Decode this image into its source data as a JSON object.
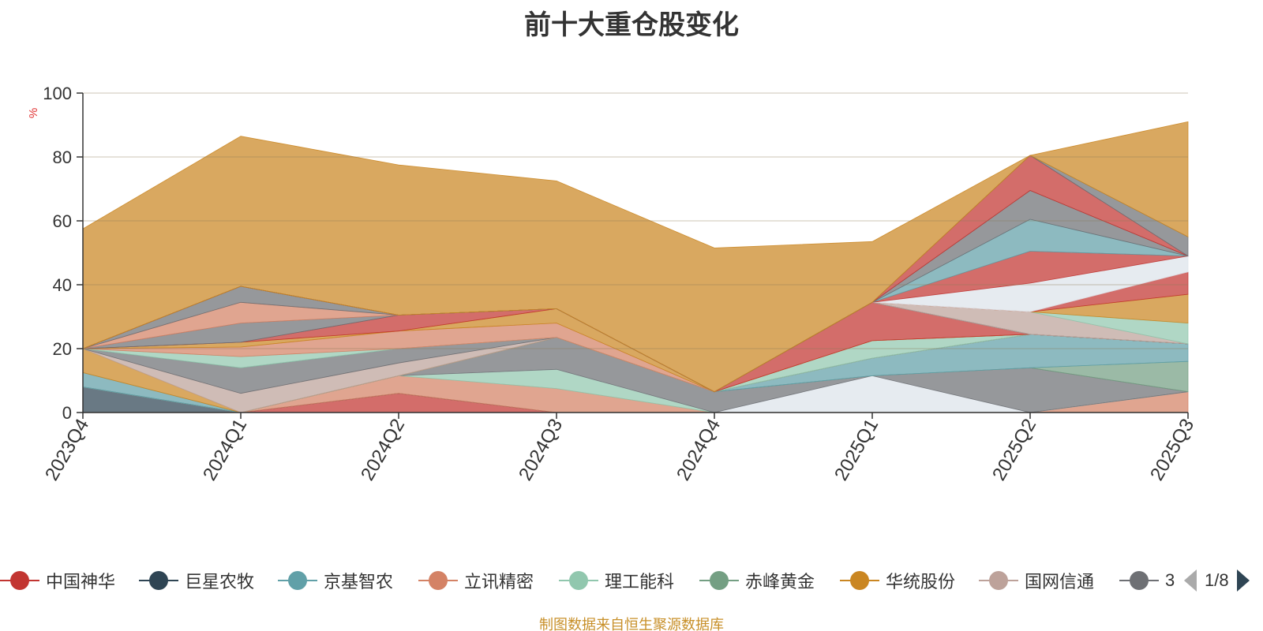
{
  "title": "前十大重仓股变化",
  "source_note": "制图数据来自恒生聚源数据库",
  "legend_pager": {
    "text": "1/8"
  },
  "legend_items": [
    {
      "name": "中国神华",
      "color": "#c23531"
    },
    {
      "name": "巨星农牧",
      "color": "#2f4554"
    },
    {
      "name": "京基智农",
      "color": "#61a0a8"
    },
    {
      "name": "立讯精密",
      "color": "#d48265"
    },
    {
      "name": "理工能科",
      "color": "#91c7ae"
    },
    {
      "name": "赤峰黄金",
      "color": "#749f83"
    },
    {
      "name": "华统股份",
      "color": "#ca8622"
    },
    {
      "name": "国网信通",
      "color": "#bda29a"
    },
    {
      "name": "3",
      "color": "#6e7074"
    }
  ],
  "chart_data": {
    "type": "area",
    "stacked": true,
    "ylabel": "%",
    "ylim": [
      0,
      100
    ],
    "yticks": [
      0,
      20,
      40,
      60,
      80,
      100
    ],
    "categories": [
      "2023Q4",
      "2024Q1",
      "2024Q2",
      "2024Q3",
      "2024Q4",
      "2025Q1",
      "2025Q2",
      "2025Q3"
    ],
    "grid": true,
    "legend_position": "bottom",
    "series": [
      {
        "color": "#c23531",
        "values": [
          0,
          0,
          6,
          0,
          0,
          0,
          0,
          0
        ]
      },
      {
        "color": "#2f4554",
        "values": [
          8,
          0,
          0,
          0,
          0,
          0,
          0,
          0
        ]
      },
      {
        "color": "#d48265",
        "values": [
          0,
          0,
          5.5,
          7.5,
          0,
          0,
          0,
          6.5
        ]
      },
      {
        "color": "#91c7ae",
        "values": [
          0,
          0,
          0,
          6,
          0,
          0,
          0,
          0
        ]
      },
      {
        "color": "#dde3ea",
        "values": [
          0,
          0,
          0,
          0,
          0,
          11.5,
          0,
          0
        ]
      },
      {
        "color": "#6e7074",
        "values": [
          0,
          0,
          0,
          10,
          6.5,
          0,
          14,
          0
        ]
      },
      {
        "color": "#749f83",
        "values": [
          0,
          0,
          0,
          0,
          0,
          0,
          0,
          9.5
        ]
      },
      {
        "color": "#61a0a8",
        "values": [
          4.5,
          0,
          0,
          0,
          0,
          5.5,
          10.5,
          5.5
        ]
      },
      {
        "color": "#ca8622",
        "values": [
          7.5,
          0,
          0,
          0,
          0,
          0,
          0,
          0
        ]
      },
      {
        "color": "#bda29a",
        "values": [
          0,
          6,
          4,
          0,
          0,
          0,
          0,
          0
        ]
      },
      {
        "color": "#6e7074",
        "values": [
          0,
          8,
          4.5,
          0,
          0,
          0,
          0,
          0
        ]
      },
      {
        "color": "#91c7ae",
        "values": [
          0,
          3.5,
          0,
          0,
          0,
          5.5,
          0,
          0
        ]
      },
      {
        "color": "#d48265",
        "values": [
          0,
          3,
          5.5,
          4.5,
          0,
          0,
          0,
          0
        ]
      },
      {
        "color": "#ca8622",
        "values": [
          0,
          1.5,
          0,
          4.5,
          0,
          0,
          0,
          0
        ]
      },
      {
        "color": "#c23531",
        "values": [
          0,
          0,
          5,
          0,
          0,
          12,
          0,
          0
        ]
      },
      {
        "color": "#6e7074",
        "values": [
          0,
          6,
          0,
          0,
          0,
          0,
          0,
          0
        ]
      },
      {
        "color": "#d48265",
        "values": [
          0,
          6.5,
          0,
          0,
          0,
          0,
          0,
          0
        ]
      },
      {
        "color": "#6e7074",
        "values": [
          0,
          5,
          0,
          0,
          0,
          0,
          0,
          0
        ]
      },
      {
        "color": "#61a0a8",
        "values": [
          0,
          0,
          0,
          0,
          0,
          0,
          0,
          0
        ]
      },
      {
        "color": "#bda29a",
        "values": [
          0,
          0,
          0,
          0,
          0,
          0,
          7,
          0
        ]
      },
      {
        "color": "#91c7ae",
        "values": [
          0,
          0,
          0,
          0,
          0,
          0,
          0,
          6.5
        ]
      },
      {
        "color": "#ca8622",
        "values": [
          0,
          0,
          0,
          0,
          0,
          0,
          0,
          9
        ]
      },
      {
        "color": "#c23531",
        "values": [
          0,
          0,
          0,
          0,
          0,
          0,
          0,
          7
        ]
      },
      {
        "color": "#dde3ea",
        "values": [
          0,
          0,
          0,
          0,
          0,
          0,
          9,
          5
        ]
      },
      {
        "color": "#c23531",
        "values": [
          0,
          0,
          0,
          0,
          0,
          0,
          10,
          0
        ]
      },
      {
        "color": "#61a0a8",
        "values": [
          0,
          0,
          0,
          0,
          0,
          0,
          10,
          0
        ]
      },
      {
        "color": "#6e7074",
        "values": [
          0,
          0,
          0,
          0,
          0,
          0,
          9,
          0
        ]
      },
      {
        "color": "#c23531",
        "values": [
          0,
          0,
          0,
          0,
          0,
          0,
          11,
          0
        ]
      },
      {
        "color": "#6e7074",
        "values": [
          0,
          0,
          0,
          0,
          0,
          0,
          0,
          6
        ]
      },
      {
        "color": "#ca8622",
        "values": [
          37.5,
          47,
          47,
          40,
          45,
          19,
          0,
          36
        ]
      }
    ]
  }
}
